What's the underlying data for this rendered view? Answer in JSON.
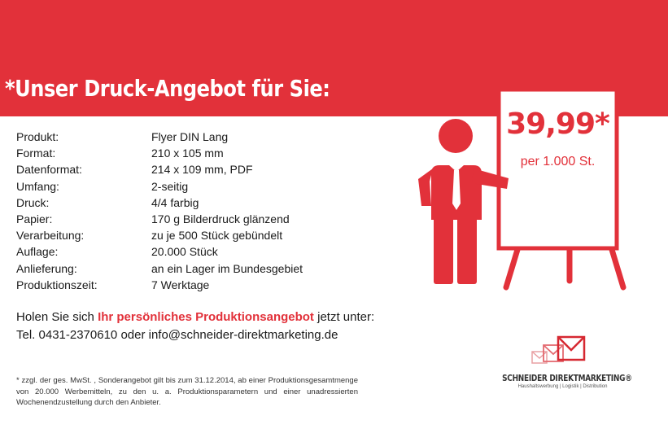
{
  "headline": "*Unser Druck-Angebot für Sie:",
  "specs": [
    {
      "label": "Produkt:",
      "value": "Flyer DIN Lang"
    },
    {
      "label": "Format:",
      "value": "210 x 105 mm"
    },
    {
      "label": "Datenformat:",
      "value": "214 x 109 mm, PDF"
    },
    {
      "label": "Umfang:",
      "value": "2-seitig"
    },
    {
      "label": "Druck:",
      "value": "4/4 farbig"
    },
    {
      "label": "Papier:",
      "value": "170 g Bilderdruck glänzend"
    },
    {
      "label": "Verarbeitung:",
      "value": "zu je 500 Stück gebündelt"
    },
    {
      "label": "Auflage:",
      "value": "20.000 Stück"
    },
    {
      "label": "Anlieferung:",
      "value": "an ein Lager im Bundesgebiet"
    },
    {
      "label": "Produktionszeit:",
      "value": "7 Werktage"
    }
  ],
  "cta": {
    "prefix": "Holen Sie sich ",
    "highlight": "Ihr persönliches Produktionsangebot",
    "suffix": " jetzt unter:",
    "contact": "Tel. 0431-2370610 oder info@schneider-direktmarketing.de"
  },
  "price": {
    "amount": "39,99*",
    "unit": "per 1.000 St."
  },
  "footnote": "* zzgl. der ges. MwSt. , Sonderangebot gilt bis zum 31.12.2014, ab einer Produktionsgesamtmenge von 20.000 Werbemitteln, zu den u. a. Produktionsparametern und einer unadressierten Wochenendzustellung durch den Anbieter.",
  "logo": {
    "name": "SCHNEIDER DIREKTMARKETING®",
    "tagline": "Haushaltswerbung | Logistik | Distribution"
  },
  "colors": {
    "brand_red": "#e2313a"
  }
}
